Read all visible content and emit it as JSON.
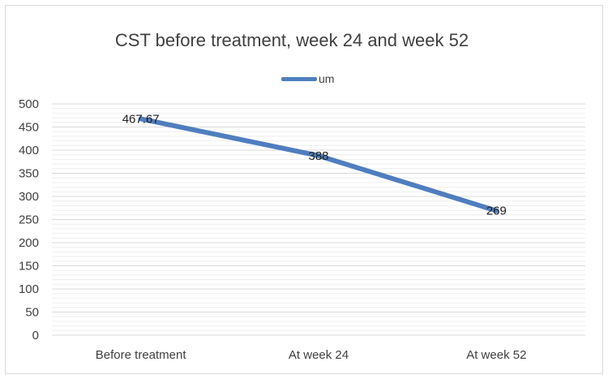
{
  "chart_data": {
    "type": "line",
    "title": "CST before treatment, week 24 and week 52",
    "categories": [
      "Before treatment",
      "At week 24",
      "At week 52"
    ],
    "series": [
      {
        "name": "um",
        "values": [
          467.67,
          388,
          269
        ],
        "labels": [
          "467.67",
          "388",
          "269"
        ]
      }
    ],
    "ylim": [
      0,
      500
    ],
    "yticks": [
      0,
      50,
      100,
      150,
      200,
      250,
      300,
      350,
      400,
      450,
      500
    ],
    "grid": true,
    "legend_position": "top",
    "colors": {
      "line": "#4f7ebf",
      "grid_major": "#d9d9d9",
      "grid_minor": "#eeeeee"
    }
  }
}
